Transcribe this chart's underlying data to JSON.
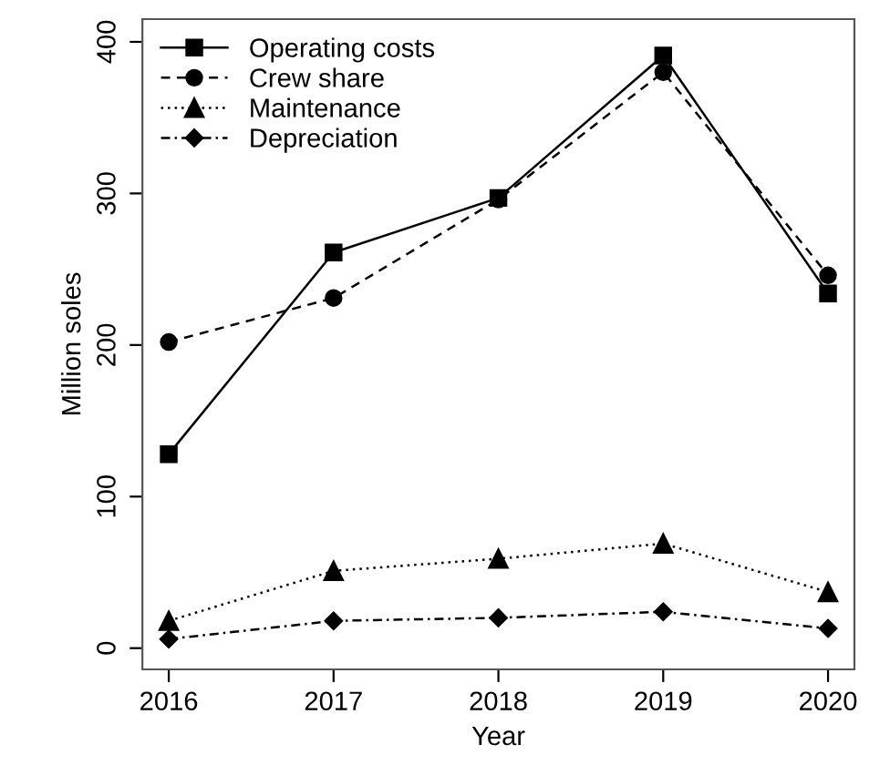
{
  "chart_data": {
    "type": "line",
    "xlabel": "Year",
    "ylabel": "Million soles",
    "x": [
      2016,
      2017,
      2018,
      2019,
      2020
    ],
    "series": [
      {
        "name": "Operating costs",
        "color": "#000000",
        "marker": "square",
        "line_style": "solid",
        "values": [
          128,
          261,
          297,
          391,
          234
        ]
      },
      {
        "name": "Crew share",
        "color": "#000000",
        "marker": "circle",
        "line_style": "dashed",
        "values": [
          202,
          231,
          296,
          380,
          246
        ]
      },
      {
        "name": "Maintenance",
        "color": "#000000",
        "marker": "triangle",
        "line_style": "dotted",
        "values": [
          18,
          51,
          59,
          69,
          37
        ]
      },
      {
        "name": "Depreciation",
        "color": "#000000",
        "marker": "diamond",
        "line_style": "dashdot",
        "values": [
          6,
          18,
          20,
          24,
          13
        ]
      }
    ],
    "xlim": [
      2015.84,
      2020.16
    ],
    "ylim": [
      -14,
      415
    ],
    "xticks": [
      2016,
      2017,
      2018,
      2019,
      2020
    ],
    "yticks": [
      0,
      100,
      200,
      300,
      400
    ],
    "grid": false,
    "legend": "top left"
  }
}
